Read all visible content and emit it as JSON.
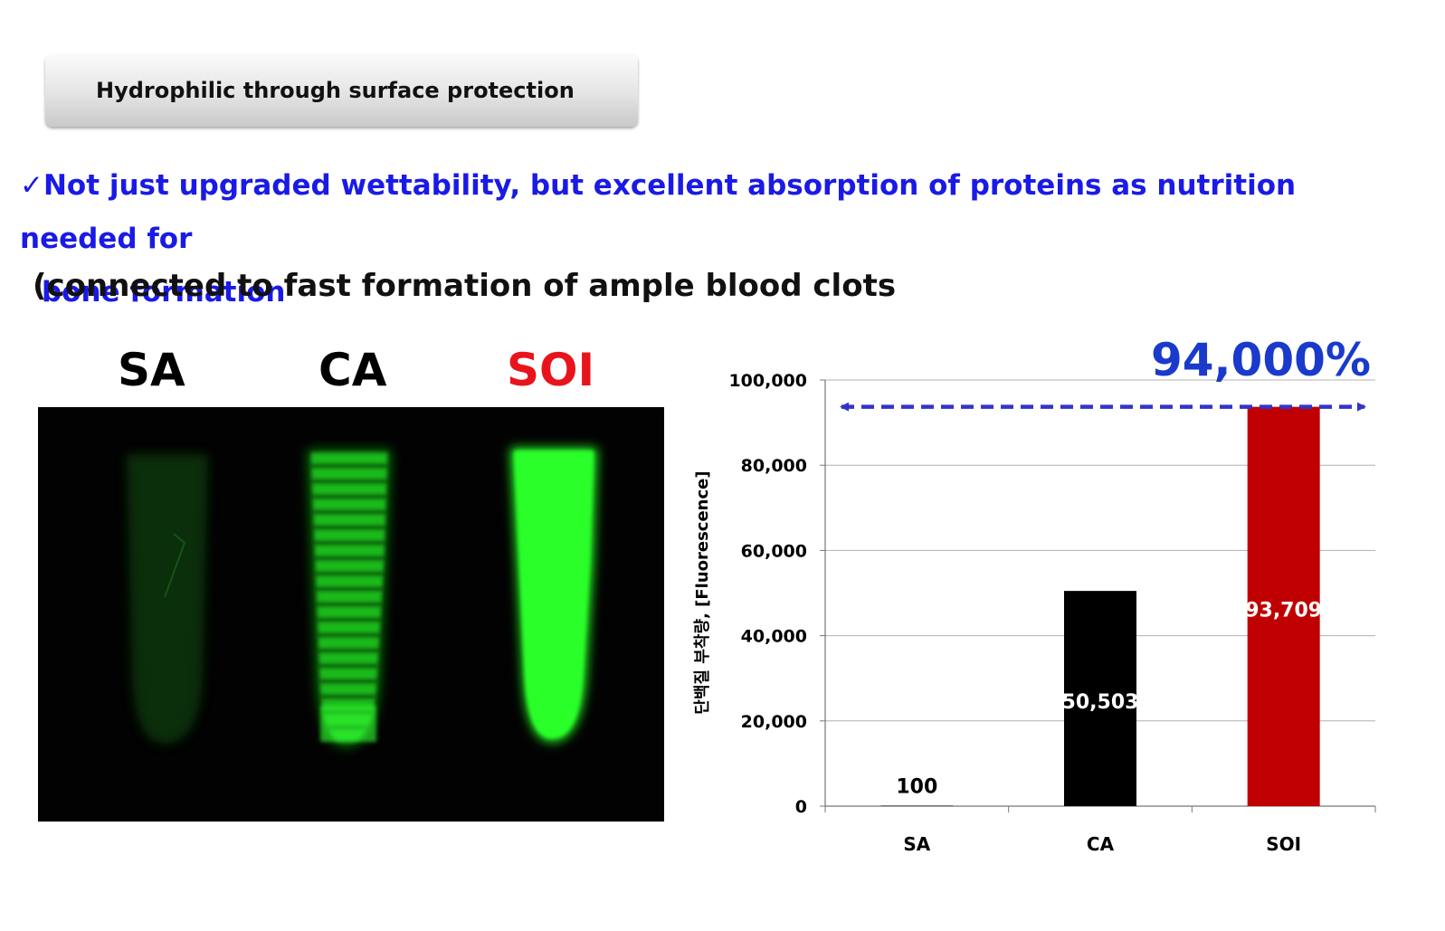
{
  "header": {
    "title": "Hydrophilic through surface protection"
  },
  "bullet": {
    "check": "✓",
    "line1": "Not just upgraded wettability, but excellent absorption of proteins as nutrition needed for",
    "line2": "bone formation"
  },
  "subtitle": "(connected to fast formation of ample blood clots",
  "image_labels": {
    "sa": "SA",
    "ca": "CA",
    "soi": "SOI"
  },
  "colors": {
    "accent_blue": "#1a1ae6",
    "soi_red": "#e8141c",
    "bar_black": "#000000",
    "bar_red": "#c00000",
    "glow_green": "#2cff2c"
  },
  "chart_data": {
    "type": "bar",
    "categories": [
      "SA",
      "CA",
      "SOI"
    ],
    "values": [
      100,
      50503,
      93709
    ],
    "value_labels": [
      "100",
      "50,503",
      "93,709"
    ],
    "bar_colors": [
      "#000000",
      "#000000",
      "#c00000"
    ],
    "ylabel": "단백질 부착량, [Fluorescence]",
    "ylim": [
      0,
      100000
    ],
    "yticks": [
      0,
      20000,
      40000,
      60000,
      80000,
      100000
    ],
    "ytick_labels": [
      "0",
      "20,000",
      "40,000",
      "60,000",
      "80,000",
      "100,000"
    ],
    "grid": true,
    "annotation": {
      "text": "94,000%",
      "arrow_value": 93709,
      "style": "dashed double-headed arrow"
    }
  }
}
